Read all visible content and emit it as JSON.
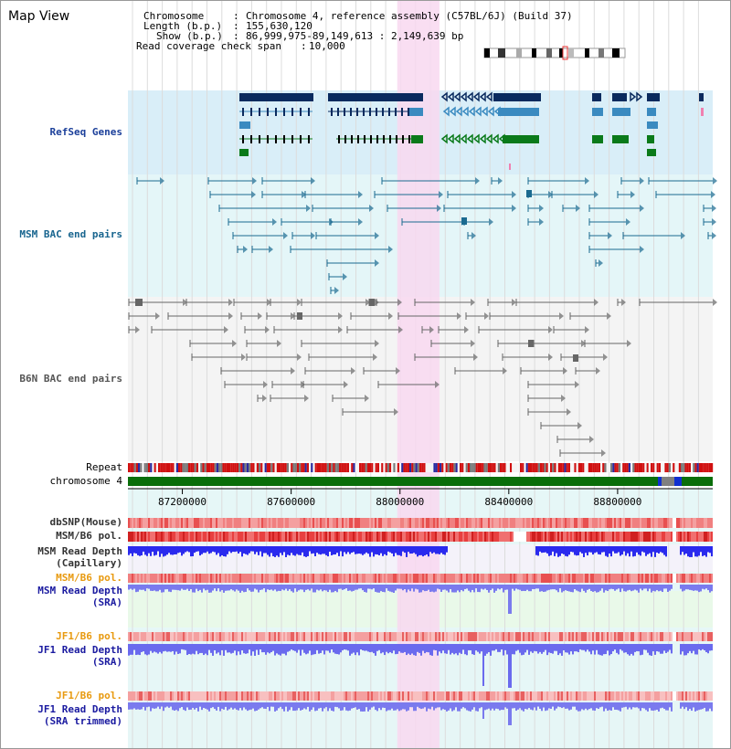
{
  "view_title": "Map View",
  "info": [
    {
      "key": "Chromosome",
      "value": "Chromosome 4, reference assembly (C57BL/6J) (Build 37)",
      "indent": 1
    },
    {
      "key": "Length (b.p.)",
      "value": "155,630,120",
      "indent": 1
    },
    {
      "key": "Show (b.p.)",
      "value": "86,999,975-89,149,613 : 2,149,639 bp",
      "indent": 3
    },
    {
      "key": "Read coverage check span",
      "value": "10,000",
      "indent": 0
    }
  ],
  "tracks": {
    "refseq": "RefSeq Genes",
    "msm_bac": "MSM BAC end pairs",
    "b6n_bac": "B6N BAC end pairs",
    "repeat": "Repeat",
    "chromosome": "chromosome 4",
    "dbsnp": "dbSNP(Mouse)",
    "msm_b6_pol": "MSM/B6 pol.",
    "msm_read_depth_cap_1": "MSM Read Depth",
    "msm_read_depth_cap_2": "(Capillary)",
    "msm_b6_pol_sra": "MSM/B6 pol.",
    "msm_read_depth_sra_1": "MSM Read Depth",
    "msm_read_depth_sra_2": "(SRA)",
    "jf1_b6_pol": "JF1/B6 pol.",
    "jf1_read_depth_1": "JF1 Read Depth",
    "jf1_read_depth_2": "(SRA)",
    "jf1_b6_pol_trim": "JF1/B6 pol.",
    "jf1_read_depth_trim_1": "JF1 Read Depth",
    "jf1_read_depth_trim_2": "(SRA trimmed)"
  },
  "axis": {
    "ticks": [
      87200000,
      87600000,
      88000000,
      88400000,
      88800000
    ],
    "tick_labels": [
      "87200000",
      "87600000",
      "88000000",
      "88400000",
      "88800000"
    ],
    "range": [
      86999975,
      89149613
    ]
  },
  "highlight_region": {
    "start": 87990000,
    "end": 88145000
  },
  "colors": {
    "gene_dark": "#0a2a5e",
    "gene_mid": "#3a8ac0",
    "gene_green": "#0a7a1a",
    "msm_bac": "#1a6a90",
    "b6n_bac": "#666666",
    "chromosome": "#0a6e0a",
    "depth_blue": "#2a2aee",
    "depth_light": "#7a7aee",
    "pol_red": "#e84040",
    "highlight": "#f8d8f0"
  }
}
